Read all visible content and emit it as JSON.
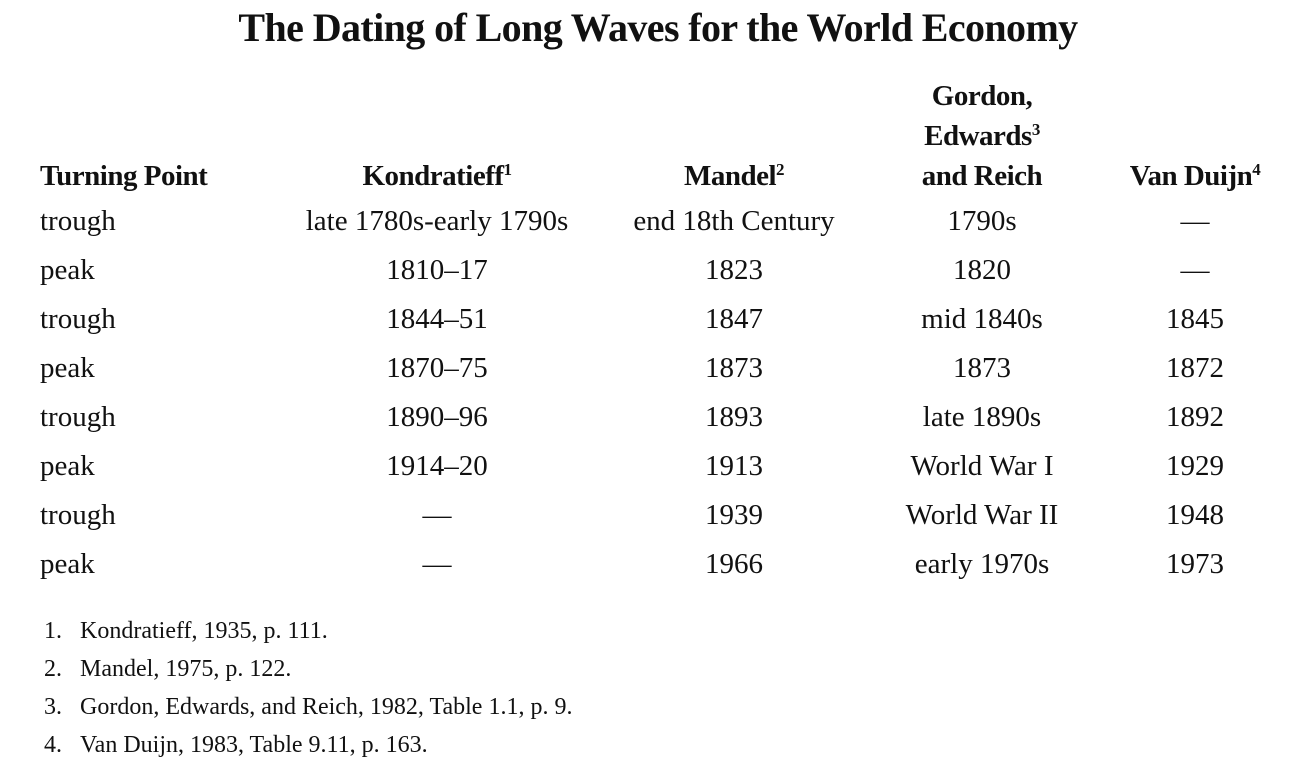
{
  "title": "The Dating of Long Waves for the World Economy",
  "table": {
    "headers": {
      "turning_point": "Turning Point",
      "kondratieff": "Kondratieff",
      "kondratieff_note": "1",
      "mandel": "Mandel",
      "mandel_note": "2",
      "gordon_line1": "Gordon,",
      "gordon_line2": "Edwards",
      "gordon_note": "3",
      "gordon_line3": "and Reich",
      "van_duijn": "Van Duijn",
      "van_duijn_note": "4"
    },
    "rows": [
      {
        "turning_point": "trough",
        "kondratieff": "late 1780s-early 1790s",
        "mandel": "end 18th Century",
        "gordon": "1790s",
        "van_duijn": "—"
      },
      {
        "turning_point": "peak",
        "kondratieff": "1810–17",
        "mandel": "1823",
        "gordon": "1820",
        "van_duijn": "—"
      },
      {
        "turning_point": "trough",
        "kondratieff": "1844–51",
        "mandel": "1847",
        "gordon": "mid 1840s",
        "van_duijn": "1845"
      },
      {
        "turning_point": "peak",
        "kondratieff": "1870–75",
        "mandel": "1873",
        "gordon": "1873",
        "van_duijn": "1872"
      },
      {
        "turning_point": "trough",
        "kondratieff": "1890–96",
        "mandel": "1893",
        "gordon": "late 1890s",
        "van_duijn": "1892"
      },
      {
        "turning_point": "peak",
        "kondratieff": "1914–20",
        "mandel": "1913",
        "gordon": "World War I",
        "van_duijn": "1929"
      },
      {
        "turning_point": "trough",
        "kondratieff": "—",
        "mandel": "1939",
        "gordon": "World War II",
        "van_duijn": "1948"
      },
      {
        "turning_point": "peak",
        "kondratieff": "—",
        "mandel": "1966",
        "gordon": "early 1970s",
        "van_duijn": "1973"
      }
    ]
  },
  "footnotes": [
    {
      "num": "1.",
      "text": "Kondratieff, 1935, p. 111."
    },
    {
      "num": "2.",
      "text": "Mandel, 1975, p. 122."
    },
    {
      "num": "3.",
      "text": "Gordon, Edwards, and Reich, 1982, Table 1.1, p. 9."
    },
    {
      "num": "4.",
      "text": "Van Duijn, 1983, Table 9.11, p. 163."
    }
  ]
}
